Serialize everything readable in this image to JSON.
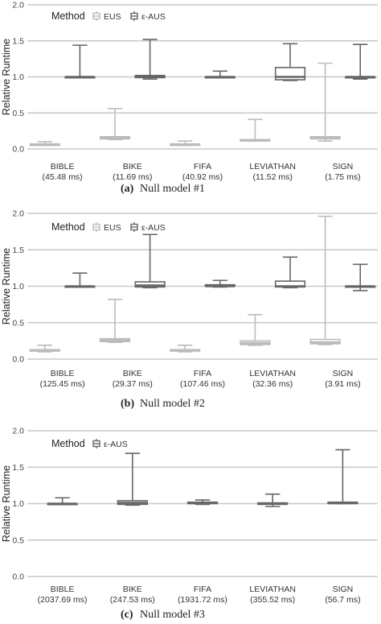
{
  "chart_data": [
    {
      "type": "boxplot",
      "caption_letter": "(a)",
      "caption_text": "Null model #1",
      "ylabel": "Relative Runtime",
      "ylim": [
        0,
        2.0
      ],
      "yticks": [
        "0.0",
        "0.5",
        "1.0",
        "1.5",
        "2.0"
      ],
      "legend_title": "Method",
      "categories": [
        {
          "name": "BIBLE",
          "sub": "(45.48 ms)"
        },
        {
          "name": "BIKE",
          "sub": "(11.69 ms)"
        },
        {
          "name": "FIFA",
          "sub": "(40.92 ms)"
        },
        {
          "name": "LEVIATHAN",
          "sub": "(11.52 ms)"
        },
        {
          "name": "SIGN",
          "sub": "(1.75 ms)"
        }
      ],
      "series": [
        {
          "name": "EUS",
          "color": "#bbbbbb",
          "boxes": [
            {
              "min": 0.05,
              "q1": 0.05,
              "median": 0.06,
              "q3": 0.07,
              "max": 0.1
            },
            {
              "min": 0.13,
              "q1": 0.14,
              "median": 0.15,
              "q3": 0.17,
              "max": 0.56
            },
            {
              "min": 0.05,
              "q1": 0.05,
              "median": 0.06,
              "q3": 0.07,
              "max": 0.11
            },
            {
              "min": 0.11,
              "q1": 0.11,
              "median": 0.12,
              "q3": 0.13,
              "max": 0.41
            },
            {
              "min": 0.11,
              "q1": 0.14,
              "median": 0.15,
              "q3": 0.17,
              "max": 1.19
            }
          ]
        },
        {
          "name": "ε-AUS",
          "color": "#666666",
          "boxes": [
            {
              "min": 1.0,
              "q1": 1.0,
              "median": 1.0,
              "q3": 1.0,
              "max": 1.44
            },
            {
              "min": 0.97,
              "q1": 0.99,
              "median": 1.0,
              "q3": 1.02,
              "max": 1.52
            },
            {
              "min": 1.0,
              "q1": 1.0,
              "median": 1.0,
              "q3": 1.0,
              "max": 1.08
            },
            {
              "min": 0.95,
              "q1": 0.96,
              "median": 1.0,
              "q3": 1.13,
              "max": 1.46
            },
            {
              "min": 0.97,
              "q1": 0.99,
              "median": 1.0,
              "q3": 1.0,
              "max": 1.45
            }
          ]
        }
      ]
    },
    {
      "type": "boxplot",
      "caption_letter": "(b)",
      "caption_text": "Null model #2",
      "ylabel": "Relative Runtime",
      "ylim": [
        0,
        2.0
      ],
      "yticks": [
        "0.0",
        "0.5",
        "1.0",
        "1.5",
        "2.0"
      ],
      "legend_title": "Method",
      "categories": [
        {
          "name": "BIBLE",
          "sub": "(125.45 ms)"
        },
        {
          "name": "BIKE",
          "sub": "(29.37 ms)"
        },
        {
          "name": "FIFA",
          "sub": "(107.46 ms)"
        },
        {
          "name": "LEVIATHAN",
          "sub": "(32.36 ms)"
        },
        {
          "name": "SIGN",
          "sub": "(3.91 ms)"
        }
      ],
      "series": [
        {
          "name": "EUS",
          "color": "#bbbbbb",
          "boxes": [
            {
              "min": 0.1,
              "q1": 0.11,
              "median": 0.12,
              "q3": 0.13,
              "max": 0.19
            },
            {
              "min": 0.23,
              "q1": 0.24,
              "median": 0.26,
              "q3": 0.28,
              "max": 0.82
            },
            {
              "min": 0.1,
              "q1": 0.11,
              "median": 0.12,
              "q3": 0.13,
              "max": 0.19
            },
            {
              "min": 0.19,
              "q1": 0.2,
              "median": 0.22,
              "q3": 0.25,
              "max": 0.61
            },
            {
              "min": 0.2,
              "q1": 0.21,
              "median": 0.23,
              "q3": 0.27,
              "max": 1.96
            }
          ]
        },
        {
          "name": "ε-AUS",
          "color": "#666666",
          "boxes": [
            {
              "min": 1.0,
              "q1": 1.0,
              "median": 1.0,
              "q3": 1.0,
              "max": 1.18
            },
            {
              "min": 0.98,
              "q1": 0.99,
              "median": 1.01,
              "q3": 1.06,
              "max": 1.71
            },
            {
              "min": 0.99,
              "q1": 1.0,
              "median": 1.0,
              "q3": 1.02,
              "max": 1.08
            },
            {
              "min": 0.98,
              "q1": 0.99,
              "median": 1.0,
              "q3": 1.07,
              "max": 1.4
            },
            {
              "min": 0.94,
              "q1": 1.0,
              "median": 1.0,
              "q3": 1.0,
              "max": 1.3
            }
          ]
        }
      ]
    },
    {
      "type": "boxplot",
      "caption_letter": "(c)",
      "caption_text": "Null model #3",
      "ylabel": "Relative Runtime",
      "ylim": [
        0,
        2.0
      ],
      "yticks": [
        "0.0",
        "0.5",
        "1.0",
        "1.5",
        "2.0"
      ],
      "legend_title": "Method",
      "categories": [
        {
          "name": "BIBLE",
          "sub": "(2037.69 ms)"
        },
        {
          "name": "BIKE",
          "sub": "(247.53 ms)"
        },
        {
          "name": "FIFA",
          "sub": "(1931.72 ms)"
        },
        {
          "name": "LEVIATHAN",
          "sub": "(355.52 ms)"
        },
        {
          "name": "SIGN",
          "sub": "(56.7 ms)"
        }
      ],
      "series": [
        {
          "name": "ε-AUS",
          "color": "#666666",
          "boxes": [
            {
              "min": 1.0,
              "q1": 1.0,
              "median": 1.0,
              "q3": 1.0,
              "max": 1.08
            },
            {
              "min": 0.98,
              "q1": 0.99,
              "median": 1.01,
              "q3": 1.04,
              "max": 1.69
            },
            {
              "min": 0.99,
              "q1": 1.0,
              "median": 1.01,
              "q3": 1.02,
              "max": 1.05
            },
            {
              "min": 0.96,
              "q1": 0.99,
              "median": 1.0,
              "q3": 1.01,
              "max": 1.13
            },
            {
              "min": 1.0,
              "q1": 1.0,
              "median": 1.01,
              "q3": 1.02,
              "max": 1.74
            }
          ]
        }
      ]
    }
  ]
}
